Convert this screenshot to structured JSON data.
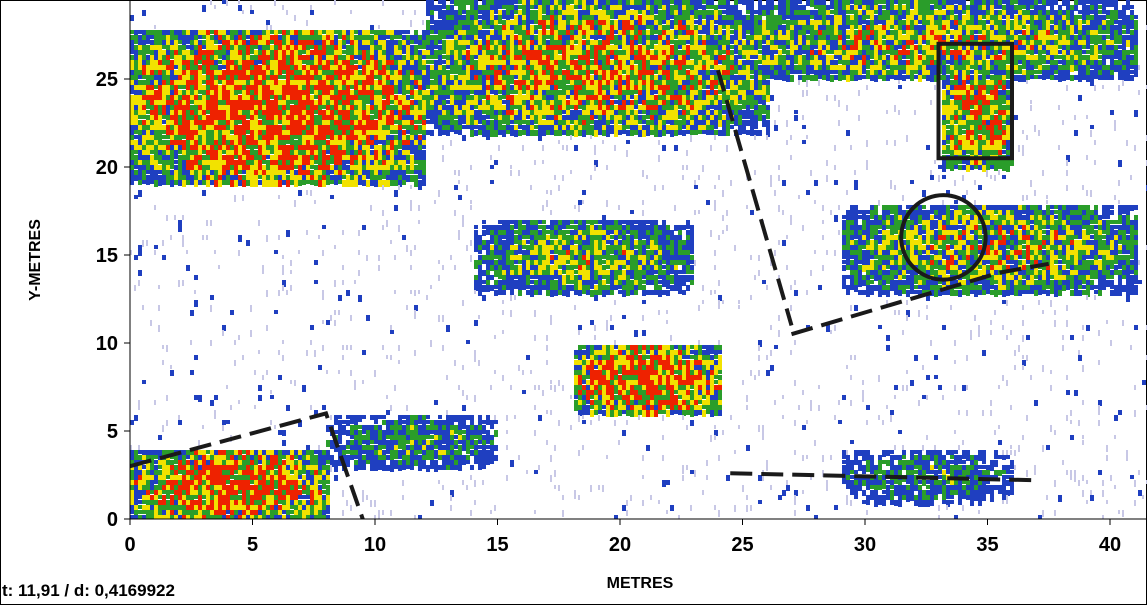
{
  "chart_data": {
    "type": "heatmap",
    "title": "",
    "xlabel": "METRES",
    "ylabel": "Y-METRES",
    "xlim": [
      0,
      41
    ],
    "ylim": [
      0,
      29.5
    ],
    "x_ticks": [
      0,
      5,
      10,
      15,
      20,
      25,
      30,
      35,
      40
    ],
    "y_ticks": [
      0,
      5,
      10,
      15,
      20,
      25
    ],
    "grid": false,
    "legend": "none",
    "colors": {
      "background": "#ffffff",
      "weak": "#c8c8e6",
      "low": "#1f3fc0",
      "mid": "#2a9d2a",
      "high": "#f2e200",
      "peak": "#ee2200",
      "annotation": "#1a1a1a"
    },
    "anomaly_zones": [
      {
        "x": [
          0,
          12
        ],
        "y": [
          19,
          28
        ],
        "intensity": 1.0
      },
      {
        "x": [
          12,
          26
        ],
        "y": [
          22,
          29.5
        ],
        "intensity": 0.85
      },
      {
        "x": [
          24,
          41
        ],
        "y": [
          25,
          29.5
        ],
        "intensity": 0.75
      },
      {
        "x": [
          18,
          24
        ],
        "y": [
          6,
          10
        ],
        "intensity": 1.0
      },
      {
        "x": [
          14,
          23
        ],
        "y": [
          13,
          17
        ],
        "intensity": 0.7
      },
      {
        "x": [
          29,
          41
        ],
        "y": [
          13,
          18
        ],
        "intensity": 0.75
      },
      {
        "x": [
          0,
          8
        ],
        "y": [
          0,
          4
        ],
        "intensity": 1.0
      },
      {
        "x": [
          8,
          15
        ],
        "y": [
          3,
          6
        ],
        "intensity": 0.6
      },
      {
        "x": [
          29,
          36
        ],
        "y": [
          1,
          4
        ],
        "intensity": 0.55
      },
      {
        "x": [
          33,
          36
        ],
        "y": [
          20,
          26
        ],
        "intensity": 0.9
      }
    ],
    "annotations": {
      "dash_lines": [
        [
          [
            0,
            3
          ],
          [
            8,
            6
          ],
          [
            9.5,
            0
          ]
        ],
        [
          [
            24,
            25.5
          ],
          [
            27,
            11
          ]
        ],
        [
          [
            27,
            10.5
          ],
          [
            35.5,
            14
          ]
        ],
        [
          [
            24.5,
            2.6
          ],
          [
            37,
            2.2
          ]
        ]
      ],
      "dash_line_shortened": [
        [
          35.5,
          14
        ],
        [
          37.5,
          14.5
        ]
      ],
      "circle": {
        "cx": 33.2,
        "cy": 16,
        "r": 2.4
      },
      "rect": {
        "x": [
          33,
          36
        ],
        "y": [
          20.5,
          27
        ]
      }
    }
  },
  "status_text": "t: 11,91 / d: 0,4169922"
}
